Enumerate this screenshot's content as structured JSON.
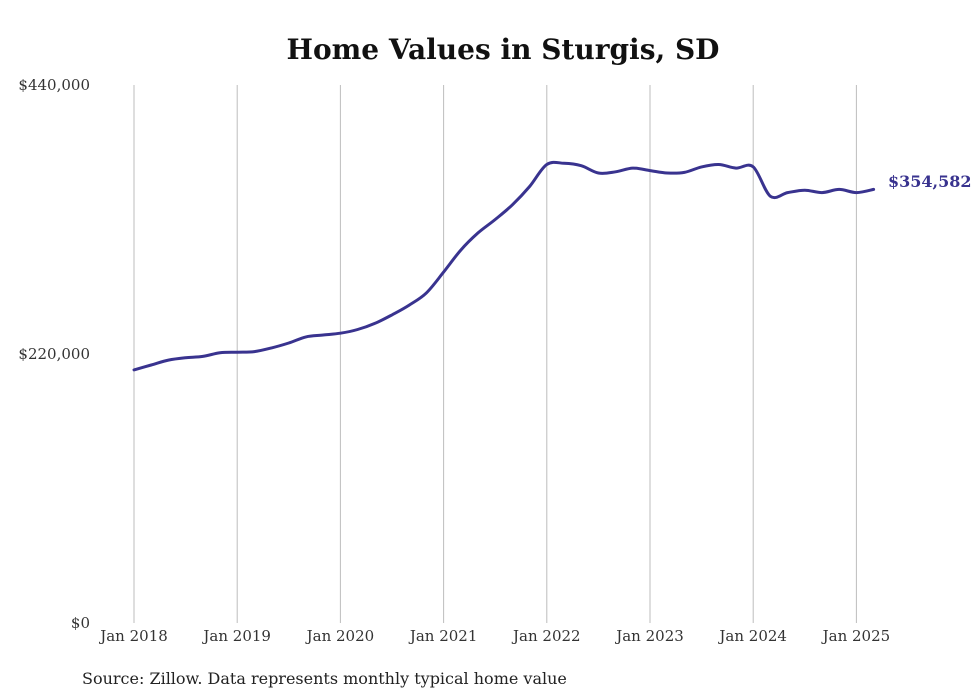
{
  "chart_data": {
    "type": "line",
    "title": "Home Values in Sturgis, SD",
    "xlabel": "",
    "ylabel": "",
    "ylim": [
      0,
      440000
    ],
    "y_ticks": [
      {
        "value": 0,
        "label": "$0"
      },
      {
        "value": 220000,
        "label": "$220,000"
      },
      {
        "value": 440000,
        "label": "$440,000"
      }
    ],
    "x_ticks": [
      {
        "value": 0,
        "label": "Jan 2018"
      },
      {
        "value": 12,
        "label": "Jan 2019"
      },
      {
        "value": 24,
        "label": "Jan 2020"
      },
      {
        "value": 36,
        "label": "Jan 2021"
      },
      {
        "value": 48,
        "label": "Jan 2022"
      },
      {
        "value": 60,
        "label": "Jan 2023"
      },
      {
        "value": 72,
        "label": "Jan 2024"
      },
      {
        "value": 84,
        "label": "Jan 2025"
      }
    ],
    "grid": "vertical",
    "line_color": "#39338f",
    "series": [
      {
        "x": [
          0,
          2,
          4,
          6,
          8,
          10,
          12,
          14,
          16,
          18,
          20,
          22,
          24,
          26,
          28,
          30,
          32,
          34,
          36,
          38,
          40,
          42,
          44,
          46,
          48,
          50,
          52,
          54,
          56,
          58,
          60,
          62,
          64,
          66,
          68,
          70,
          72,
          74,
          76,
          78,
          80,
          82,
          84,
          86
        ],
        "y": [
          207000,
          211000,
          215000,
          217000,
          218000,
          221000,
          221500,
          222000,
          225000,
          229000,
          234000,
          235500,
          237000,
          240000,
          245000,
          252000,
          260000,
          270000,
          287000,
          305000,
          319000,
          330000,
          342000,
          357000,
          375000,
          376000,
          374000,
          368000,
          369000,
          372000,
          370000,
          368000,
          368500,
          373000,
          375000,
          372000,
          373000,
          349000,
          352000,
          354000,
          352000,
          354582,
          352000,
          354582
        ]
      }
    ],
    "end_label": "$354,582"
  },
  "source": "Source: Zillow. Data represents monthly typical home value"
}
